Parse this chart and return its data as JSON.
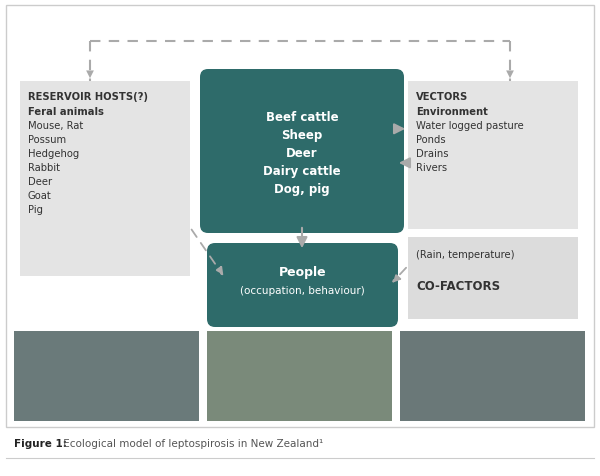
{
  "bg_color": "#ffffff",
  "border_color": "#cccccc",
  "teal_box_color": "#2e6b6a",
  "light_box_color": "#e4e4e4",
  "cofactor_box_color": "#dcdcdc",
  "arrow_color": "#aaaaaa",
  "text_white": "#ffffff",
  "text_dark": "#333333",
  "text_medium": "#555555",
  "caption_bold": "Figure 1:",
  "caption_rest": " Ecological model of leptospirosis in New Zealand¹",
  "center_box_lines": [
    "Beef cattle",
    "Sheep",
    "Deer",
    "Dairy cattle",
    "Dog, pig"
  ],
  "people_box_lines": [
    "People",
    "(occupation, behaviour)"
  ],
  "reservoir_title": "RESERVOIR HOSTS(?)",
  "reservoir_subtitle": "Feral animals",
  "reservoir_items": [
    "Mouse, Rat",
    "Possum",
    "Hedgehog",
    "Rabbit",
    "Deer",
    "Goat",
    "Pig"
  ],
  "vectors_title": "VECTORS",
  "vectors_subtitle": "Environment",
  "vectors_items": [
    "Water logged pasture",
    "Ponds",
    "Drains",
    "Rivers"
  ],
  "cofactors_line1": "(Rain, temperature)",
  "cofactors_line2": "CO-FACTORS",
  "figw": 6.0,
  "figh": 4.77,
  "dpi": 100
}
